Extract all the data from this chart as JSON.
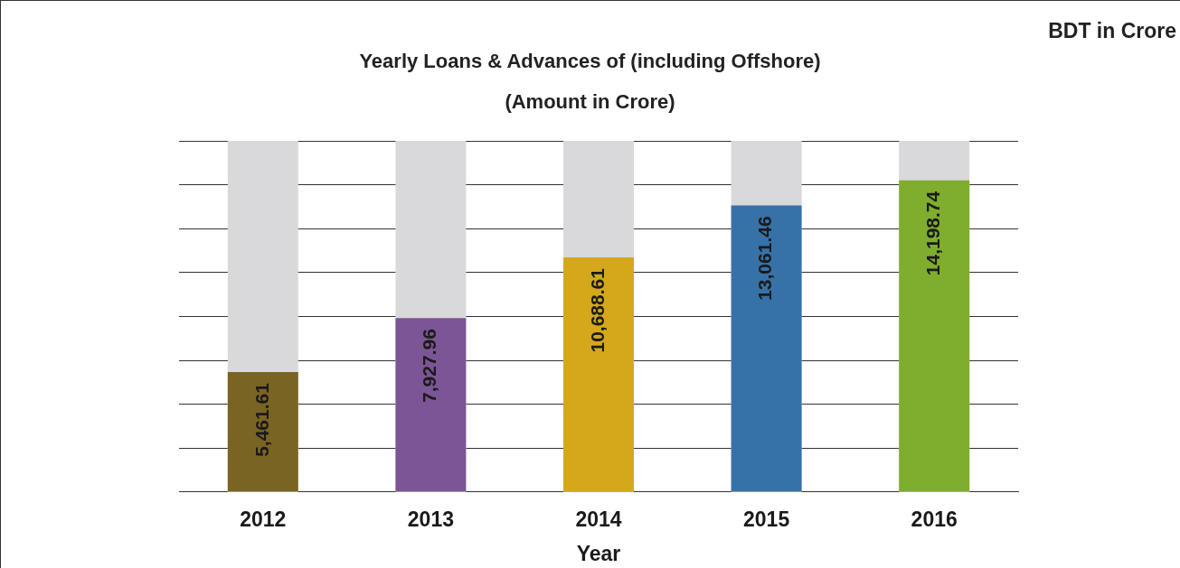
{
  "chart_data": {
    "type": "bar",
    "title": "Yearly Loans & Advances of (including Offshore)",
    "subtitle": "(Amount in Crore)",
    "xlabel": "Year",
    "annotations": [
      "BDT in Crore"
    ],
    "categories": [
      "2012",
      "2013",
      "2014",
      "2015",
      "2016"
    ],
    "values": [
      5461.61,
      7927.96,
      10688.61,
      13061.46,
      14198.74
    ],
    "value_labels": [
      "5,461.61",
      "7,927.96",
      "10,688.61",
      "13,061.46",
      "14,198.74"
    ],
    "colors": [
      "#7a6424",
      "#7b5595",
      "#d4a81a",
      "#3672a8",
      "#7fad2e"
    ],
    "grid": "y",
    "tick_labels": "x",
    "legend": false
  }
}
